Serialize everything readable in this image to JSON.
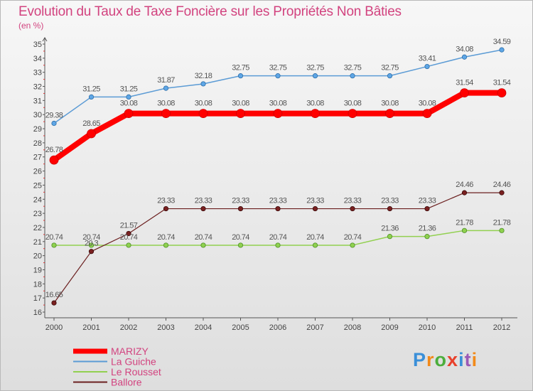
{
  "header": {
    "title": "Evolution du Taux de Taxe Foncière sur les Propriétés Non Bâties",
    "unit": "(en %)"
  },
  "brand": {
    "letters": [
      "P",
      "r",
      "o",
      "x",
      "i",
      "t",
      "i"
    ]
  },
  "colors": {
    "title": "#d2437f",
    "legend_text": "#d2437f",
    "marizy": "#ff0000",
    "la_guiche": "#5b9bd5",
    "le_rousset": "#92d050",
    "ballore": "#6b1f1f"
  },
  "chart_data": {
    "type": "line",
    "title": "Evolution du Taux de Taxe Foncière sur les Propriétés Non Bâties",
    "ylabel": "(en %)",
    "xlabel": "",
    "ylim": [
      16,
      35
    ],
    "yticks": [
      "16",
      "17",
      "18",
      "19",
      "20",
      "21",
      "22",
      "23",
      "24",
      "25",
      "26",
      "27",
      "28",
      "29",
      "30",
      "31",
      "32",
      "33",
      "34",
      "35"
    ],
    "categories": [
      "2000",
      "2001",
      "2002",
      "2003",
      "2004",
      "2005",
      "2006",
      "2007",
      "2008",
      "2009",
      "2010",
      "2011",
      "2012"
    ],
    "grid": false,
    "legend_position": "bottom-left",
    "series": [
      {
        "name": "MARIZY",
        "values": [
          26.78,
          28.65,
          30.08,
          30.08,
          30.08,
          30.08,
          30.08,
          30.08,
          30.08,
          30.08,
          30.08,
          31.54,
          31.54
        ],
        "labels": [
          "26.78",
          "28.65",
          "30.08",
          "30.08",
          "30.08",
          "30.08",
          "30.08",
          "30.08",
          "30.08",
          "30.08",
          "30.08",
          "31.54",
          "31.54"
        ]
      },
      {
        "name": "La Guiche",
        "values": [
          29.38,
          31.25,
          31.25,
          31.87,
          32.18,
          32.75,
          32.75,
          32.75,
          32.75,
          32.75,
          33.41,
          34.08,
          34.59
        ],
        "labels": [
          "29.38",
          "31.25",
          "31.25",
          "31.87",
          "32.18",
          "32.75",
          "32.75",
          "32.75",
          "32.75",
          "32.75",
          "33.41",
          "34.08",
          "34.59"
        ]
      },
      {
        "name": "Le Rousset",
        "values": [
          20.74,
          20.74,
          20.74,
          20.74,
          20.74,
          20.74,
          20.74,
          20.74,
          20.74,
          21.36,
          21.36,
          21.78,
          21.78
        ],
        "labels": [
          "20.74",
          "20.74",
          "20.74",
          "20.74",
          "20.74",
          "20.74",
          "20.74",
          "20.74",
          "20.74",
          "21.36",
          "21.36",
          "21.78",
          "21.78"
        ]
      },
      {
        "name": "Ballore",
        "values": [
          16.65,
          20.3,
          21.57,
          23.33,
          23.33,
          23.33,
          23.33,
          23.33,
          23.33,
          23.33,
          23.33,
          24.46,
          24.46
        ],
        "labels": [
          "16.65",
          "20.3",
          "21.57",
          "23.33",
          "23.33",
          "23.33",
          "23.33",
          "23.33",
          "23.33",
          "23.33",
          "23.33",
          "24.46",
          "24.46"
        ]
      }
    ]
  }
}
